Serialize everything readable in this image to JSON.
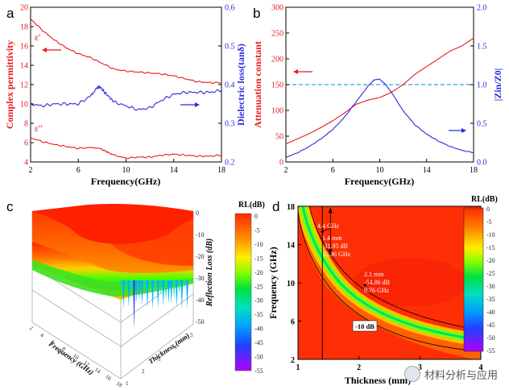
{
  "watermark": "材料分析与应用",
  "chart_data": [
    {
      "panel": "a",
      "type": "line",
      "xlabel": "Frequency(GHz)",
      "ylabel": "Complex permittivity",
      "ylabel_right": "Dielectric loss(tanδ)",
      "xlim": [
        2,
        18
      ],
      "ylim": [
        4,
        20
      ],
      "ylim_right": [
        0.2,
        0.6
      ],
      "xticks": [
        2,
        6,
        10,
        14,
        18
      ],
      "yticks": [
        4,
        6,
        8,
        10,
        12,
        14,
        16,
        18,
        20
      ],
      "yticks_right": [
        "0.2",
        "0.3",
        "0.4",
        "0.5",
        "0.6"
      ],
      "annotations": [
        "ε′",
        "ε″"
      ],
      "series": [
        {
          "name": "ε′",
          "axis": "left",
          "color": "#e8191e",
          "x": [
            2,
            3,
            4,
            5,
            6,
            7,
            8,
            9,
            10,
            11,
            12,
            13,
            14,
            15,
            16,
            17,
            18
          ],
          "y": [
            18.8,
            17.6,
            16.6,
            15.8,
            15.2,
            14.8,
            14.2,
            13.6,
            13.4,
            13.3,
            13.2,
            13.1,
            12.9,
            12.6,
            12.3,
            12.2,
            12.2
          ]
        },
        {
          "name": "ε″",
          "axis": "left",
          "color": "#e8191e",
          "x": [
            2,
            3,
            4,
            5,
            6,
            7,
            7.8,
            8.5,
            9,
            10,
            11,
            12,
            13,
            14,
            15,
            16,
            17,
            18
          ],
          "y": [
            6.5,
            6.1,
            5.8,
            5.6,
            5.4,
            5.5,
            5.4,
            5.0,
            4.7,
            4.4,
            4.5,
            4.5,
            4.7,
            4.8,
            4.7,
            4.6,
            4.6,
            4.7
          ]
        },
        {
          "name": "tanδ",
          "axis": "right",
          "color": "#2a2ae0",
          "x": [
            2,
            3,
            4,
            5,
            6,
            7,
            7.5,
            7.8,
            8.2,
            9,
            10,
            11,
            12,
            13,
            14,
            15,
            16,
            17,
            18
          ],
          "y": [
            0.35,
            0.345,
            0.35,
            0.35,
            0.35,
            0.37,
            0.39,
            0.395,
            0.38,
            0.355,
            0.345,
            0.335,
            0.34,
            0.36,
            0.375,
            0.38,
            0.38,
            0.38,
            0.385
          ]
        }
      ]
    },
    {
      "panel": "b",
      "type": "line",
      "xlabel": "Frequency(GHz)",
      "ylabel": "Attenuation constant",
      "ylabel_right": "|Zin/Z0|",
      "xlim": [
        2,
        18
      ],
      "ylim": [
        0,
        300
      ],
      "ylim_right": [
        0,
        2
      ],
      "xticks": [
        2,
        6,
        10,
        14,
        18
      ],
      "yticks": [
        0,
        50,
        100,
        150,
        200,
        250,
        300
      ],
      "yticks_right": [
        "0.0",
        "0.5",
        "1.0",
        "1.5",
        "2.0"
      ],
      "reference_line": 1.0,
      "series": [
        {
          "name": "Attenuation constant",
          "axis": "left",
          "color": "#e8191e",
          "x": [
            2,
            3,
            4,
            5,
            6,
            7,
            8,
            9,
            10,
            11,
            12,
            13,
            14,
            15,
            16,
            17,
            18
          ],
          "y": [
            35,
            45,
            55,
            67,
            80,
            95,
            112,
            120,
            125,
            135,
            150,
            170,
            185,
            200,
            215,
            225,
            240
          ]
        },
        {
          "name": "|Zin/Z0|",
          "axis": "right",
          "color": "#2a2ae0",
          "x": [
            2,
            3,
            4,
            5,
            6,
            7,
            8,
            9,
            9.5,
            10,
            10.5,
            11,
            12,
            13,
            14,
            15,
            16,
            17,
            18
          ],
          "y": [
            0.06,
            0.12,
            0.2,
            0.3,
            0.42,
            0.58,
            0.78,
            0.98,
            1.06,
            1.07,
            1.0,
            0.9,
            0.66,
            0.48,
            0.36,
            0.27,
            0.2,
            0.15,
            0.12
          ]
        }
      ]
    },
    {
      "panel": "c",
      "type": "surface3d",
      "title": "RL(dB)",
      "zlabel": "Reflection Loss (dB)",
      "xlabel": "Frequency (GHz)",
      "ylabel": "Thickness (mm)",
      "zticks": [
        "0",
        "-10",
        "-20",
        "-30",
        "-40",
        "-50"
      ],
      "freq_ticks": [
        "2",
        "4",
        "6",
        "8",
        "10",
        "12",
        "14",
        "16",
        "18"
      ],
      "thick_ticks": [
        "1",
        "2",
        "3",
        "4",
        "5"
      ],
      "colorbar_ticks": [
        "0",
        "-5",
        "-10",
        "-15",
        "-20",
        "-25",
        "-30",
        "-35",
        "-40",
        "-45",
        "-50",
        "-55"
      ]
    },
    {
      "panel": "d",
      "type": "heatmap",
      "title": "RL(dB)",
      "xlabel": "Thickness (mm)",
      "ylabel": "Frequency (GHz)",
      "xlim": [
        1,
        4
      ],
      "ylim": [
        2,
        18
      ],
      "xticks": [
        1,
        2,
        3,
        4
      ],
      "yticks": [
        2,
        6,
        10,
        14,
        18
      ],
      "colorbar_ticks": [
        "0",
        "-5",
        "-10",
        "-15",
        "-20",
        "-25",
        "-30",
        "-35",
        "-40",
        "-45",
        "-50",
        "-55"
      ],
      "annotations": {
        "bandwidth": "4.4 GHz",
        "point1": [
          "1.4 mm",
          "-31.95 dB",
          "15.36 GHz"
        ],
        "point2": [
          "2.1 mm",
          "-54.86 dB",
          "9.76 GHz"
        ],
        "contour": "-10 dB"
      },
      "point1": {
        "thickness": 1.4,
        "frequency": 15.36,
        "rl": -31.95
      },
      "point2": {
        "thickness": 2.1,
        "frequency": 9.76,
        "rl": -54.86
      }
    }
  ]
}
